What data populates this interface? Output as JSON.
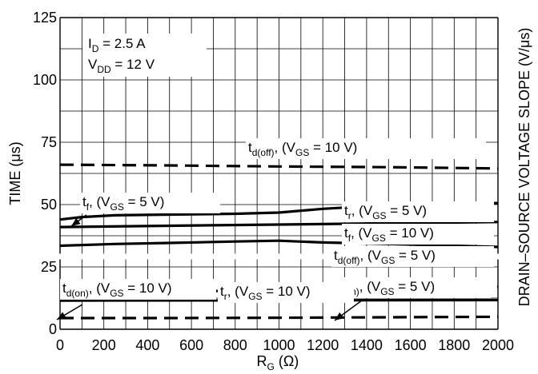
{
  "chart_data": {
    "type": "line",
    "xlabel": {
      "main": "R",
      "sub": "G",
      "unit": " (Ω)"
    },
    "ylabel": "TIME (μs)",
    "y2label": "DRAIN–SOURCE VOLTAGE SLOPE (V/μs)",
    "xlim": [
      0,
      2000
    ],
    "ylim": [
      0,
      125
    ],
    "x_ticks": [
      0,
      200,
      400,
      600,
      800,
      1000,
      1200,
      1400,
      1600,
      1800,
      2000
    ],
    "y_ticks": [
      0,
      25,
      50,
      75,
      100,
      125
    ],
    "x_grid": [
      0,
      100,
      200,
      300,
      400,
      500,
      600,
      700,
      800,
      900,
      1000,
      1100,
      1200,
      1300,
      1400,
      1500,
      1600,
      1700,
      1800,
      1900,
      2000
    ],
    "y_grid": [
      0,
      12.5,
      25,
      37.5,
      50,
      62.5,
      75,
      87.5,
      100,
      112.5,
      125
    ],
    "y_break": 29,
    "conditions": [
      {
        "main": "I",
        "sub": "D",
        "rest": " = 2.5 A"
      },
      {
        "main": "V",
        "sub": "DD",
        "rest": " = 12 V"
      }
    ],
    "series": [
      {
        "key": "td_off_10",
        "dashed": true,
        "label": {
          "p1": "t",
          "s1": "d(off)",
          "p2": ", (V",
          "s2": "GS",
          "p3": " = 10 V)"
        },
        "x": [
          0,
          500,
          1000,
          1500,
          2000
        ],
        "y": [
          66,
          65.7,
          65.3,
          65,
          64.5
        ]
      },
      {
        "key": "tr_5",
        "dashed": false,
        "label": {
          "p1": "t",
          "s1": "r",
          "p2": ", (V",
          "s2": "GS",
          "p3": " = 5 V)"
        },
        "x": [
          0,
          100,
          250,
          500,
          800,
          1000,
          1200,
          1400,
          1600,
          1800,
          2000
        ],
        "y": [
          44,
          45,
          45.7,
          46,
          46.3,
          46.8,
          48.3,
          49.3,
          50,
          50.4,
          50.6
        ]
      },
      {
        "key": "tf_10",
        "dashed": false,
        "label": {
          "p1": "t",
          "s1": "f",
          "p2": ", (V",
          "s2": "GS",
          "p3": " = 10 V)"
        },
        "x": [
          0,
          500,
          1000,
          1500,
          2000
        ],
        "y": [
          41,
          41.5,
          42,
          42.5,
          43
        ]
      },
      {
        "key": "tf_5",
        "dashed": false,
        "label": {
          "p1": "t",
          "s1": "f",
          "p2": ", (V",
          "s2": "GS",
          "p3": " = 5 V)"
        },
        "x": [],
        "y": []
      },
      {
        "key": "td_off_5",
        "dashed": false,
        "label": {
          "p1": "t",
          "s1": "d(off)",
          "p2": ", (V",
          "s2": "GS",
          "p3": " = 5 V)"
        },
        "x": [
          0,
          250,
          500,
          800,
          1000,
          1200,
          1500,
          1800,
          2000
        ],
        "y": [
          33.5,
          34.2,
          34.6,
          35.2,
          35.5,
          34.8,
          34.2,
          33.5,
          33
        ]
      },
      {
        "key": "td_on_5",
        "dashed": true,
        "label": {
          "p1": "t",
          "s1": "d(on)",
          "p2": ", (V",
          "s2": "GS",
          "p3": " = 5 V)"
        },
        "x": [
          0,
          500,
          1000,
          1500,
          2000
        ],
        "y": [
          15,
          15.2,
          15.5,
          16,
          17
        ]
      },
      {
        "key": "tr_10",
        "dashed": false,
        "label": {
          "p1": "t",
          "s1": "r",
          "p2": ", (V",
          "s2": "GS",
          "p3": " = 10 V)"
        },
        "x": [
          0,
          2000
        ],
        "y": [
          11.5,
          11.7
        ]
      },
      {
        "key": "td_on_10",
        "dashed": true,
        "label": {
          "p1": "t",
          "s1": "d(on)",
          "p2": ", (V",
          "s2": "GS",
          "p3": " = 10 V)"
        },
        "x": [
          0,
          500,
          1000,
          1500,
          2000
        ],
        "y": [
          4.5,
          4.5,
          4.6,
          4.8,
          5
        ]
      }
    ]
  }
}
